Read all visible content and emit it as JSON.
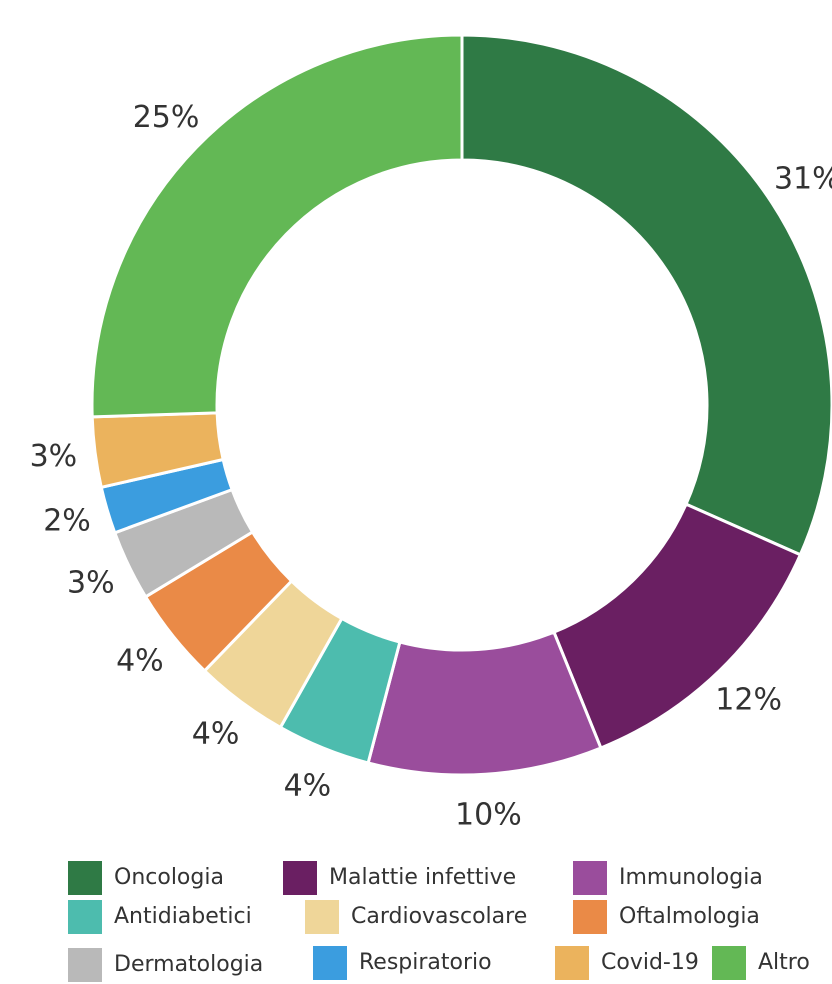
{
  "chart_data": {
    "type": "donut",
    "categories": [
      "Oncologia",
      "Malattie infettive",
      "Immunologia",
      "Antidiabetici",
      "Cardiovascolare",
      "Oftalmologia",
      "Dermatologia",
      "Respiratorio",
      "Covid-19",
      "Altro"
    ],
    "values": [
      31,
      12,
      10,
      4,
      4,
      4,
      3,
      2,
      3,
      25
    ],
    "value_labels": [
      "31%",
      "12%",
      "10%",
      "4%",
      "4%",
      "4%",
      "3%",
      "2%",
      "3%",
      "25%"
    ],
    "colors": [
      "#2f7a45",
      "#6a1f62",
      "#9a4d9c",
      "#4dbcae",
      "#efd699",
      "#ea8a47",
      "#b9b9b9",
      "#3b9ddf",
      "#ebb35d",
      "#63b855"
    ]
  }
}
